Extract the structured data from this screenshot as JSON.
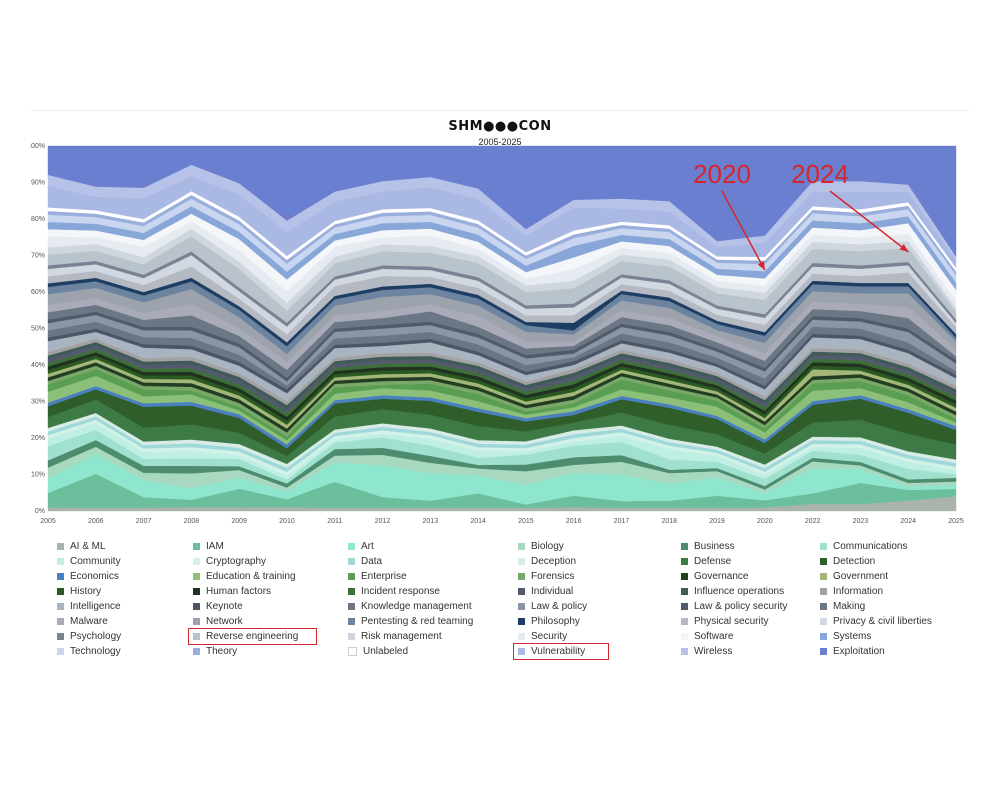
{
  "logo_text": "SHM●●●CON",
  "subtitle": "2005-2025",
  "annotations": [
    {
      "label": "2020",
      "target_year": "2020",
      "target_y": 66
    },
    {
      "label": "2024",
      "target_year": "2024",
      "target_y": 71
    }
  ],
  "highlighted_legend": [
    "Reverse engineering",
    "Vulnerability"
  ],
  "chart_data": {
    "type": "area",
    "stacked": true,
    "normalized": true,
    "x": [
      "2005",
      "2006",
      "2007",
      "2008",
      "2009",
      "2010",
      "2011",
      "2012",
      "2013",
      "2014",
      "2015",
      "2016",
      "2017",
      "2018",
      "2019",
      "2020",
      "2022",
      "2023",
      "2024",
      "2025"
    ],
    "ylim": [
      0,
      100
    ],
    "yticks": [
      "0%",
      "10%",
      "20%",
      "30%",
      "40%",
      "50%",
      "60%",
      "70%",
      "80%",
      "90%",
      "100%"
    ],
    "grid": false,
    "legend_position": "bottom",
    "series": [
      {
        "name": "AI & ML",
        "color": "#a9b4ad",
        "values": [
          1,
          1,
          1,
          1,
          1,
          1,
          1,
          1,
          1,
          1,
          1,
          1,
          1,
          1,
          1,
          1,
          2,
          2,
          3,
          4
        ]
      },
      {
        "name": "IAM",
        "color": "#6cbf9c",
        "values": [
          4,
          10,
          3,
          2,
          5,
          2,
          8,
          3,
          2,
          4,
          1,
          3,
          2,
          2,
          4,
          2,
          3,
          6,
          3,
          2
        ]
      },
      {
        "name": "Art",
        "color": "#8fe6cf",
        "values": [
          4,
          6,
          5,
          3,
          3,
          2,
          6,
          9,
          8,
          5,
          6,
          6,
          8,
          5,
          6,
          2,
          7,
          4,
          1,
          1
        ]
      },
      {
        "name": "Biology",
        "color": "#a8d9c0",
        "values": [
          3,
          2,
          2,
          4,
          2,
          1,
          2,
          3,
          3,
          2,
          4,
          2,
          4,
          3,
          2,
          1,
          2,
          1,
          1,
          1
        ]
      },
      {
        "name": "Business",
        "color": "#4d8c6e",
        "values": [
          2,
          2,
          2,
          2,
          1,
          1,
          2,
          2,
          2,
          1,
          2,
          2,
          2,
          1,
          1,
          1,
          1,
          1,
          1,
          1
        ]
      },
      {
        "name": "Communications",
        "color": "#9fe0cf",
        "values": [
          4,
          3,
          2,
          2,
          2,
          1,
          2,
          3,
          3,
          2,
          3,
          3,
          4,
          3,
          2,
          2,
          2,
          2,
          3,
          1
        ]
      },
      {
        "name": "Community",
        "color": "#bfeee2",
        "values": [
          2,
          2,
          2,
          2,
          1,
          1,
          1,
          1,
          2,
          2,
          1,
          1,
          2,
          3,
          2,
          1,
          1,
          2,
          2,
          1
        ]
      },
      {
        "name": "Cryptography",
        "color": "#d2f2e8",
        "values": [
          1,
          1,
          1,
          1,
          1,
          1,
          1,
          1,
          1,
          1,
          1,
          1,
          1,
          1,
          1,
          1,
          1,
          1,
          1,
          1
        ]
      },
      {
        "name": "Data",
        "color": "#9ed8d8",
        "values": [
          1,
          1,
          1,
          1,
          1,
          1,
          1,
          1,
          1,
          1,
          1,
          1,
          1,
          1,
          1,
          1,
          1,
          1,
          1,
          1
        ]
      },
      {
        "name": "Deception",
        "color": "#d7ece6",
        "values": [
          1,
          1,
          1,
          1,
          1,
          1,
          1,
          1,
          1,
          1,
          1,
          1,
          1,
          1,
          1,
          1,
          1,
          1,
          1,
          1
        ]
      },
      {
        "name": "Defense",
        "color": "#3d7a45",
        "values": [
          3,
          4,
          4,
          4,
          3,
          2,
          4,
          4,
          4,
          4,
          3,
          2,
          4,
          4,
          4,
          3,
          4,
          5,
          5,
          4
        ]
      },
      {
        "name": "Detection",
        "color": "#2f5e2a",
        "values": [
          3,
          3,
          6,
          5,
          4,
          2,
          4,
          3,
          4,
          4,
          3,
          2,
          4,
          5,
          5,
          3,
          5,
          6,
          6,
          4
        ]
      },
      {
        "name": "Economics",
        "color": "#4a7fc0",
        "values": [
          1,
          1,
          1,
          1,
          1,
          1,
          1,
          1,
          1,
          1,
          1,
          1,
          1,
          1,
          1,
          1,
          1,
          1,
          1,
          1
        ]
      },
      {
        "name": "Education & training",
        "color": "#8cbf78",
        "values": [
          3,
          3,
          2,
          2,
          1,
          1,
          2,
          2,
          2,
          2,
          1,
          1,
          2,
          2,
          3,
          2,
          3,
          2,
          2,
          1
        ]
      },
      {
        "name": "Enterprise",
        "color": "#5a9e52",
        "values": [
          2,
          2,
          2,
          1,
          1,
          1,
          2,
          1,
          2,
          2,
          1,
          1,
          3,
          2,
          2,
          1,
          2,
          2,
          2,
          1
        ]
      },
      {
        "name": "Forensics",
        "color": "#7aa86a",
        "values": [
          1,
          1,
          1,
          1,
          1,
          1,
          1,
          1,
          1,
          1,
          1,
          1,
          1,
          1,
          1,
          1,
          1,
          1,
          1,
          1
        ]
      },
      {
        "name": "Governance",
        "color": "#223d22",
        "values": [
          1,
          1,
          1,
          1,
          1,
          1,
          1,
          1,
          1,
          1,
          1,
          1,
          1,
          1,
          1,
          1,
          1,
          1,
          1,
          1
        ]
      },
      {
        "name": "Government",
        "color": "#a3b878",
        "values": [
          1,
          1,
          1,
          1,
          1,
          1,
          1,
          1,
          1,
          1,
          1,
          1,
          1,
          1,
          1,
          1,
          2,
          1,
          1,
          1
        ]
      },
      {
        "name": "History",
        "color": "#2a5a22",
        "values": [
          1,
          1,
          1,
          1,
          1,
          1,
          1,
          1,
          1,
          1,
          1,
          1,
          1,
          1,
          1,
          1,
          1,
          1,
          1,
          1
        ]
      },
      {
        "name": "Human factors",
        "color": "#1f331f",
        "values": [
          1,
          1,
          1,
          1,
          1,
          1,
          1,
          1,
          1,
          1,
          1,
          1,
          1,
          1,
          1,
          1,
          1,
          1,
          1,
          1
        ]
      },
      {
        "name": "Incident response",
        "color": "#3e6e3a",
        "values": [
          1,
          1,
          1,
          1,
          1,
          1,
          1,
          1,
          1,
          1,
          1,
          1,
          1,
          1,
          1,
          1,
          1,
          1,
          1,
          1
        ]
      },
      {
        "name": "Individual",
        "color": "#545a6e",
        "values": [
          1,
          1,
          1,
          1,
          1,
          1,
          1,
          1,
          1,
          1,
          1,
          1,
          1,
          1,
          1,
          1,
          1,
          1,
          1,
          1
        ]
      },
      {
        "name": "Influence operations",
        "color": "#3f5a58",
        "values": [
          1,
          1,
          1,
          1,
          1,
          1,
          1,
          1,
          1,
          1,
          1,
          1,
          1,
          1,
          1,
          1,
          1,
          1,
          1,
          1
        ]
      },
      {
        "name": "Information",
        "color": "#a2a2a2",
        "values": [
          1,
          1,
          1,
          1,
          1,
          1,
          1,
          1,
          1,
          1,
          1,
          1,
          1,
          1,
          1,
          1,
          1,
          1,
          1,
          1
        ]
      },
      {
        "name": "Intelligence",
        "color": "#aab4c0",
        "values": [
          3,
          2,
          3,
          2,
          2,
          2,
          3,
          2,
          3,
          2,
          2,
          1,
          2,
          2,
          2,
          2,
          3,
          3,
          3,
          2
        ]
      },
      {
        "name": "Keynote",
        "color": "#4a5566",
        "values": [
          1,
          1,
          1,
          1,
          1,
          1,
          1,
          1,
          1,
          1,
          1,
          1,
          1,
          1,
          1,
          1,
          1,
          1,
          1,
          1
        ]
      },
      {
        "name": "Knowledge management",
        "color": "#6b7585",
        "values": [
          2,
          2,
          2,
          2,
          2,
          1,
          2,
          2,
          2,
          2,
          2,
          1,
          2,
          2,
          2,
          2,
          2,
          2,
          2,
          1
        ]
      },
      {
        "name": "Law & policy",
        "color": "#8a95a5",
        "values": [
          2,
          2,
          2,
          2,
          2,
          1,
          2,
          2,
          2,
          2,
          2,
          1,
          2,
          2,
          2,
          2,
          2,
          2,
          3,
          2
        ]
      },
      {
        "name": "Law & policy security",
        "color": "#505a68",
        "values": [
          1,
          1,
          1,
          1,
          1,
          1,
          1,
          1,
          1,
          1,
          1,
          1,
          1,
          1,
          1,
          1,
          1,
          1,
          1,
          1
        ]
      },
      {
        "name": "Making",
        "color": "#6c7786",
        "values": [
          2,
          2,
          2,
          3,
          2,
          2,
          2,
          2,
          3,
          2,
          2,
          1,
          2,
          2,
          2,
          2,
          2,
          2,
          3,
          1
        ]
      },
      {
        "name": "Malware",
        "color": "#a9acb8",
        "values": [
          2,
          2,
          2,
          3,
          2,
          2,
          2,
          2,
          2,
          3,
          2,
          1,
          2,
          2,
          2,
          2,
          2,
          2,
          3,
          2
        ]
      },
      {
        "name": "Network",
        "color": "#9da3ad",
        "values": [
          3,
          3,
          3,
          4,
          3,
          2,
          3,
          4,
          3,
          3,
          3,
          2,
          3,
          3,
          2,
          3,
          3,
          3,
          4,
          2
        ]
      },
      {
        "name": "Pentesting & red teaming",
        "color": "#6d84a0",
        "values": [
          2,
          2,
          2,
          2,
          2,
          2,
          2,
          2,
          2,
          2,
          2,
          1,
          2,
          2,
          2,
          2,
          2,
          2,
          2,
          1
        ]
      },
      {
        "name": "Philosophy",
        "color": "#1e3d63",
        "values": [
          1,
          1,
          1,
          1,
          1,
          1,
          1,
          1,
          1,
          1,
          1,
          2,
          1,
          1,
          1,
          1,
          1,
          1,
          1,
          1
        ]
      },
      {
        "name": "Physical security",
        "color": "#b5bac2",
        "values": [
          2,
          2,
          2,
          3,
          2,
          2,
          3,
          3,
          2,
          2,
          2,
          2,
          2,
          2,
          2,
          2,
          2,
          2,
          3,
          2
        ]
      },
      {
        "name": "Privacy & civil liberties",
        "color": "#d2d8e2",
        "values": [
          2,
          2,
          2,
          3,
          2,
          2,
          2,
          2,
          2,
          2,
          2,
          2,
          2,
          2,
          2,
          2,
          2,
          2,
          2,
          1
        ]
      },
      {
        "name": "Psychology",
        "color": "#7a8294",
        "values": [
          1,
          1,
          1,
          1,
          1,
          1,
          1,
          1,
          1,
          1,
          1,
          1,
          1,
          1,
          1,
          1,
          1,
          1,
          1,
          1
        ]
      },
      {
        "name": "Reverse engineering",
        "color": "#b8c3cc",
        "values": [
          3,
          3,
          3,
          4,
          5,
          3,
          4,
          4,
          4,
          4,
          4,
          4,
          4,
          4,
          4,
          4,
          4,
          4,
          4,
          2
        ]
      },
      {
        "name": "Risk management",
        "color": "#cfd6de",
        "values": [
          2,
          2,
          2,
          2,
          2,
          2,
          2,
          2,
          2,
          2,
          2,
          2,
          2,
          2,
          2,
          2,
          2,
          2,
          2,
          1
        ]
      },
      {
        "name": "Security",
        "color": "#e6ebf1",
        "values": [
          3,
          2,
          3,
          2,
          3,
          3,
          3,
          2,
          3,
          2,
          2,
          3,
          2,
          2,
          2,
          2,
          2,
          2,
          2,
          2
        ]
      },
      {
        "name": "Software",
        "color": "#f4f6f9",
        "values": [
          2,
          2,
          2,
          2,
          3,
          3,
          2,
          2,
          2,
          2,
          2,
          3,
          2,
          2,
          2,
          2,
          2,
          2,
          3,
          3
        ]
      },
      {
        "name": "Systems",
        "color": "#88a6d8",
        "values": [
          2,
          2,
          2,
          2,
          2,
          2,
          2,
          2,
          2,
          2,
          2,
          3,
          2,
          2,
          2,
          2,
          2,
          2,
          2,
          2
        ]
      },
      {
        "name": "Technology",
        "color": "#c8d6ef",
        "values": [
          2,
          2,
          2,
          2,
          2,
          2,
          2,
          2,
          2,
          2,
          2,
          2,
          2,
          2,
          2,
          2,
          2,
          2,
          2,
          2
        ]
      },
      {
        "name": "Theory",
        "color": "#9aaedc",
        "values": [
          1,
          1,
          1,
          1,
          1,
          1,
          1,
          1,
          1,
          1,
          1,
          1,
          1,
          1,
          1,
          1,
          1,
          1,
          1,
          1
        ]
      },
      {
        "name": "Unlabeled",
        "color": "#ffffff",
        "values": [
          1,
          1,
          1,
          1,
          1,
          1,
          1,
          1,
          1,
          1,
          1,
          1,
          1,
          1,
          1,
          1,
          1,
          1,
          1,
          1
        ]
      },
      {
        "name": "Vulnerability",
        "color": "#aab8e4",
        "values": [
          6,
          4,
          6,
          4,
          6,
          6,
          6,
          5,
          6,
          6,
          5,
          6,
          4,
          4,
          3,
          4,
          4,
          5,
          3,
          2
        ]
      },
      {
        "name": "Wireless",
        "color": "#b7c2e8",
        "values": [
          3,
          3,
          3,
          3,
          3,
          3,
          3,
          3,
          3,
          3,
          2,
          2,
          3,
          3,
          2,
          2,
          3,
          3,
          2,
          1
        ]
      },
      {
        "name": "Exploitation",
        "color": "#6a7fd0",
        "values": [
          8,
          12,
          12,
          5,
          10,
          19,
          14,
          10,
          9,
          12,
          25,
          14,
          16,
          16,
          31,
          25,
          10,
          10,
          11,
          30
        ]
      }
    ]
  }
}
